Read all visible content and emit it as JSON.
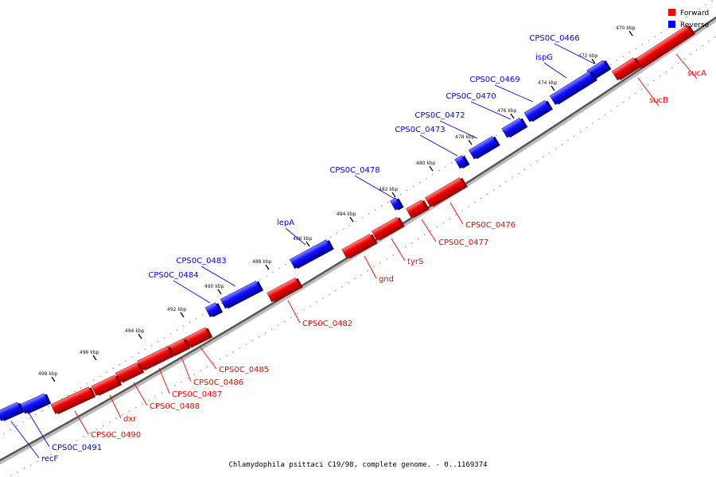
{
  "legend": {
    "forward": {
      "label": "Forward",
      "color": "#ff0000"
    },
    "reverse": {
      "label": "Reverse",
      "color": "#0000ff"
    }
  },
  "footer": "Chlamydophila psittaci C19/98, complete genome. - 0..1169374",
  "ticks": [
    "470 kbp",
    "472 kbp",
    "474 kbp",
    "476 kbp",
    "478 kbp",
    "480 kbp",
    "482 kbp",
    "484 kbp",
    "486 kbp",
    "488 kbp",
    "490 kbp",
    "492 kbp",
    "494 kbp",
    "496 kbp",
    "498 kbp"
  ],
  "genes": [
    {
      "name": "sucA",
      "strand": "forward"
    },
    {
      "name": "sucB",
      "strand": "forward"
    },
    {
      "name": "CPS0C_0466",
      "strand": "reverse"
    },
    {
      "name": "ispG",
      "strand": "reverse"
    },
    {
      "name": "CPS0C_0469",
      "strand": "reverse"
    },
    {
      "name": "CPS0C_0470",
      "strand": "reverse"
    },
    {
      "name": "CPS0C_0472",
      "strand": "reverse"
    },
    {
      "name": "CPS0C_0473",
      "strand": "reverse"
    },
    {
      "name": "CPS0C_0478",
      "strand": "reverse"
    },
    {
      "name": "CPS0C_0476",
      "strand": "forward"
    },
    {
      "name": "CPS0C_0477",
      "strand": "forward"
    },
    {
      "name": "tyrS",
      "strand": "forward"
    },
    {
      "name": "gnd",
      "strand": "forward"
    },
    {
      "name": "lepA",
      "strand": "reverse"
    },
    {
      "name": "CPS0C_0483",
      "strand": "reverse"
    },
    {
      "name": "CPS0C_0484",
      "strand": "reverse"
    },
    {
      "name": "CPS0C_0482",
      "strand": "forward"
    },
    {
      "name": "CPS0C_0485",
      "strand": "forward"
    },
    {
      "name": "CPS0C_0486",
      "strand": "forward"
    },
    {
      "name": "CPS0C_0487",
      "strand": "forward"
    },
    {
      "name": "CPS0C_0488",
      "strand": "forward"
    },
    {
      "name": "dxr",
      "strand": "forward"
    },
    {
      "name": "CPS0C_0490",
      "strand": "forward"
    },
    {
      "name": "CPS0C_0491",
      "strand": "reverse"
    },
    {
      "name": "recF",
      "strand": "reverse"
    }
  ]
}
